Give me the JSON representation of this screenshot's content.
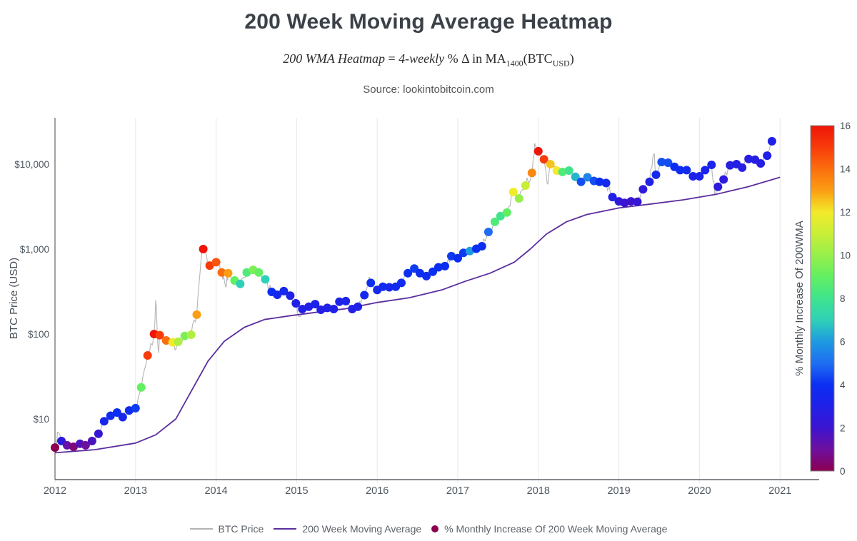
{
  "title": "200 Week Moving Average Heatmap",
  "subtitle": {
    "p1": "200 WMA Heatmap",
    "p2": " = ",
    "p3": "4-weekly",
    "p4": " % Δ in MA",
    "sub1": "1400",
    "p5": "(BTC",
    "sub2": "USD",
    "p6": ")"
  },
  "source": "Source: lookintobitcoin.com",
  "chart_data": {
    "type": "scatter",
    "title": "200 Week Moving Average Heatmap",
    "x_axis": {
      "ticks": [
        2012,
        2013,
        2014,
        2015,
        2016,
        2017,
        2018,
        2019,
        2020,
        2021
      ],
      "range": [
        2012,
        2021.45
      ],
      "grid": true
    },
    "y_axis": {
      "label": "BTC Price (USD)",
      "scale": "log",
      "tick_labels": [
        "$10",
        "$100",
        "$1,000",
        "$10,000"
      ],
      "tick_values": [
        10,
        100,
        1000,
        10000
      ],
      "range_log10": [
        0.28,
        4.55
      ]
    },
    "colorbar": {
      "label": "% Monthly Increase Of 200WMA",
      "min": 0,
      "max": 16,
      "ticks": [
        0,
        2,
        4,
        6,
        8,
        10,
        12,
        14,
        16
      ],
      "stops": [
        [
          0,
          "#8b0050"
        ],
        [
          1,
          "#6f0f9e"
        ],
        [
          2,
          "#3c14cf"
        ],
        [
          3,
          "#2020e8"
        ],
        [
          4,
          "#0b2ff1"
        ],
        [
          5,
          "#1e6ef2"
        ],
        [
          6,
          "#1e9ae0"
        ],
        [
          7,
          "#2fd0b7"
        ],
        [
          8,
          "#3fe48d"
        ],
        [
          9,
          "#62ef62"
        ],
        [
          10,
          "#97ef4a"
        ],
        [
          11,
          "#c9ee38"
        ],
        [
          12,
          "#f3ea2a"
        ],
        [
          13,
          "#fb9e14"
        ],
        [
          14,
          "#fb6e0e"
        ],
        [
          15,
          "#f73c0a"
        ],
        [
          16,
          "#ee1407"
        ]
      ]
    },
    "legend": [
      {
        "type": "line",
        "color": "#b3b3b3",
        "label": "BTC Price"
      },
      {
        "type": "line",
        "color": "#5b2d9e",
        "label": "200 Week Moving Average"
      },
      {
        "type": "dot",
        "color": "#8b0050",
        "label": "% Monthly Increase Of 200 Week Moving Average"
      }
    ],
    "series": {
      "btc_price_color": "#b5b5b5",
      "wma_color": "#5b2d9e",
      "wma_points": [
        [
          2012.0,
          4.0
        ],
        [
          2012.5,
          4.35
        ],
        [
          2013.0,
          5.2
        ],
        [
          2013.25,
          6.5
        ],
        [
          2013.5,
          10
        ],
        [
          2013.7,
          22
        ],
        [
          2013.9,
          48
        ],
        [
          2014.1,
          82
        ],
        [
          2014.35,
          120
        ],
        [
          2014.6,
          148
        ],
        [
          2014.9,
          163
        ],
        [
          2015.2,
          178
        ],
        [
          2015.6,
          198
        ],
        [
          2016.0,
          235
        ],
        [
          2016.4,
          268
        ],
        [
          2016.8,
          330
        ],
        [
          2017.1,
          420
        ],
        [
          2017.4,
          520
        ],
        [
          2017.7,
          700
        ],
        [
          2017.9,
          1000
        ],
        [
          2018.1,
          1500
        ],
        [
          2018.35,
          2100
        ],
        [
          2018.6,
          2550
        ],
        [
          2019.0,
          3050
        ],
        [
          2019.4,
          3400
        ],
        [
          2019.8,
          3800
        ],
        [
          2020.2,
          4400
        ],
        [
          2020.6,
          5400
        ],
        [
          2021.0,
          7000
        ]
      ],
      "btc_extra_points": [
        [
          2012.04,
          7.0
        ],
        [
          2013.25,
          250
        ],
        [
          2013.285,
          60
        ],
        [
          2013.5,
          66
        ],
        [
          2013.835,
          1120
        ],
        [
          2014.12,
          360
        ],
        [
          2015.03,
          160
        ],
        [
          2015.9,
          465
        ],
        [
          2017.955,
          17600
        ],
        [
          2018.11,
          5900
        ],
        [
          2019.44,
          13200
        ],
        [
          2020.19,
          4400
        ],
        [
          2020.93,
          19500
        ]
      ],
      "heatmap_points": [
        [
          2012.0,
          4.6,
          0
        ],
        [
          2012.08,
          5.5,
          2.6
        ],
        [
          2012.15,
          4.9,
          1.2
        ],
        [
          2012.23,
          4.7,
          0.5
        ],
        [
          2012.31,
          5.1,
          1.6
        ],
        [
          2012.38,
          4.9,
          1.0
        ],
        [
          2012.46,
          5.5,
          1.7
        ],
        [
          2012.54,
          6.7,
          2.2
        ],
        [
          2012.61,
          9.4,
          3.4
        ],
        [
          2012.69,
          10.9,
          3.8
        ],
        [
          2012.77,
          11.9,
          4.0
        ],
        [
          2012.84,
          10.5,
          3.4
        ],
        [
          2012.92,
          12.6,
          3.8
        ],
        [
          2013.0,
          13.4,
          4.2
        ],
        [
          2013.07,
          23.5,
          9.0
        ],
        [
          2013.15,
          56,
          15
        ],
        [
          2013.23,
          100,
          16
        ],
        [
          2013.3,
          97,
          15
        ],
        [
          2013.38,
          84,
          14
        ],
        [
          2013.46,
          80,
          12
        ],
        [
          2013.53,
          81,
          10.5
        ],
        [
          2013.61,
          95,
          9.5
        ],
        [
          2013.69,
          98,
          10.5
        ],
        [
          2013.76,
          169,
          13
        ],
        [
          2013.84,
          1000,
          16
        ],
        [
          2013.92,
          640,
          15
        ],
        [
          2014.0,
          700,
          14.5
        ],
        [
          2014.07,
          530,
          14
        ],
        [
          2014.15,
          520,
          13
        ],
        [
          2014.23,
          427,
          9
        ],
        [
          2014.3,
          390,
          7
        ],
        [
          2014.38,
          530,
          8.5
        ],
        [
          2014.46,
          570,
          9.5
        ],
        [
          2014.53,
          530,
          9
        ],
        [
          2014.61,
          440,
          7
        ],
        [
          2014.69,
          313,
          4
        ],
        [
          2014.76,
          290,
          3.5
        ],
        [
          2014.84,
          320,
          3.5
        ],
        [
          2014.92,
          283,
          3
        ],
        [
          2014.99,
          230,
          3
        ],
        [
          2015.07,
          197,
          3
        ],
        [
          2015.15,
          210,
          3
        ],
        [
          2015.23,
          225,
          3.2
        ],
        [
          2015.3,
          193,
          2.9
        ],
        [
          2015.38,
          203,
          3
        ],
        [
          2015.46,
          197,
          3
        ],
        [
          2015.53,
          240,
          3.2
        ],
        [
          2015.61,
          244,
          3.2
        ],
        [
          2015.69,
          197,
          2.9
        ],
        [
          2015.76,
          210,
          3
        ],
        [
          2015.84,
          287,
          3.5
        ],
        [
          2015.92,
          400,
          4
        ],
        [
          2016.0,
          330,
          3.6
        ],
        [
          2016.07,
          360,
          3.6
        ],
        [
          2016.15,
          355,
          3.5
        ],
        [
          2016.23,
          360,
          3.6
        ],
        [
          2016.3,
          400,
          3.8
        ],
        [
          2016.38,
          520,
          4
        ],
        [
          2016.46,
          590,
          4.2
        ],
        [
          2016.53,
          520,
          4
        ],
        [
          2016.61,
          480,
          3.8
        ],
        [
          2016.69,
          540,
          4
        ],
        [
          2016.76,
          610,
          4
        ],
        [
          2016.84,
          630,
          4
        ],
        [
          2016.92,
          825,
          4.2
        ],
        [
          2017.0,
          780,
          4
        ],
        [
          2017.07,
          905,
          4.2
        ],
        [
          2017.15,
          950,
          6
        ],
        [
          2017.23,
          1010,
          4
        ],
        [
          2017.3,
          1080,
          4
        ],
        [
          2017.38,
          1590,
          5
        ],
        [
          2017.46,
          2100,
          8.5
        ],
        [
          2017.53,
          2450,
          8
        ],
        [
          2017.61,
          2700,
          9
        ],
        [
          2017.69,
          4700,
          12
        ],
        [
          2017.76,
          3950,
          10
        ],
        [
          2017.84,
          5600,
          11
        ],
        [
          2017.92,
          7900,
          13.5
        ],
        [
          2018.0,
          14200,
          16
        ],
        [
          2018.07,
          11400,
          15
        ],
        [
          2018.15,
          10000,
          12.5
        ],
        [
          2018.23,
          8400,
          12
        ],
        [
          2018.3,
          8100,
          8.5
        ],
        [
          2018.38,
          8400,
          8
        ],
        [
          2018.46,
          7100,
          6.5
        ],
        [
          2018.53,
          6200,
          4.5
        ],
        [
          2018.61,
          7000,
          5.5
        ],
        [
          2018.69,
          6350,
          4.5
        ],
        [
          2018.76,
          6200,
          4
        ],
        [
          2018.84,
          6000,
          3.5
        ],
        [
          2018.92,
          4100,
          3
        ],
        [
          2019.0,
          3650,
          2.5
        ],
        [
          2019.07,
          3500,
          2
        ],
        [
          2019.15,
          3650,
          2
        ],
        [
          2019.23,
          3600,
          2.2
        ],
        [
          2019.3,
          5050,
          2.5
        ],
        [
          2019.38,
          6200,
          3
        ],
        [
          2019.46,
          7500,
          3.5
        ],
        [
          2019.53,
          10600,
          4.5
        ],
        [
          2019.61,
          10400,
          4.5
        ],
        [
          2019.69,
          9300,
          4
        ],
        [
          2019.76,
          8500,
          3.8
        ],
        [
          2019.84,
          8500,
          3.8
        ],
        [
          2019.92,
          7200,
          3.2
        ],
        [
          2020.0,
          7200,
          3.2
        ],
        [
          2020.07,
          8500,
          3.2
        ],
        [
          2020.15,
          9800,
          3.2
        ],
        [
          2020.23,
          5400,
          2.5
        ],
        [
          2020.3,
          6600,
          2.6
        ],
        [
          2020.38,
          9700,
          2.8
        ],
        [
          2020.46,
          10000,
          2.8
        ],
        [
          2020.53,
          9100,
          2.8
        ],
        [
          2020.61,
          11500,
          2.8
        ],
        [
          2020.69,
          11300,
          2.8
        ],
        [
          2020.76,
          10200,
          2.8
        ],
        [
          2020.84,
          12600,
          3
        ],
        [
          2020.9,
          18600,
          3
        ]
      ]
    }
  }
}
